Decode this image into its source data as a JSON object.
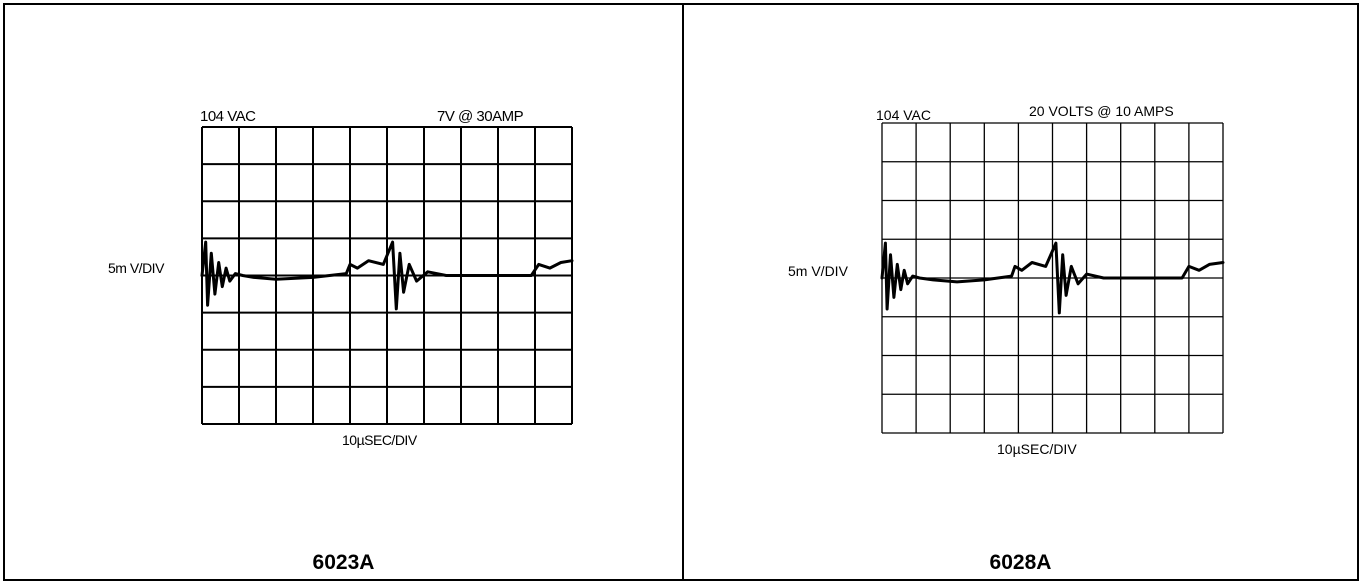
{
  "panels": [
    {
      "id": "left",
      "input_label": "104 VAC",
      "load_label": "7V @ 30AMP",
      "vertical_scale": "5m V/DIV",
      "horizontal_scale": "10µSEC/DIV",
      "model": "6023A"
    },
    {
      "id": "right",
      "input_label": "104 VAC",
      "load_label": "20 VOLTS @ 10 AMPS",
      "vertical_scale": "5m V/DIV",
      "horizontal_scale": "10µSEC/DIV",
      "model": "6028A"
    }
  ],
  "chart_data": [
    {
      "type": "line",
      "title": "",
      "input": "104 VAC",
      "load": "7V @ 30AMP",
      "ylabel": "5m V/DIV",
      "xlabel": "10µSEC/DIV",
      "grid": true,
      "divisions": {
        "x": 10,
        "y": 8
      },
      "xlim": [
        0,
        10
      ],
      "ylim": [
        -4,
        4
      ],
      "x": [
        0.0,
        0.1,
        0.15,
        0.25,
        0.35,
        0.45,
        0.55,
        0.65,
        0.75,
        0.9,
        1.1,
        1.4,
        2.0,
        3.0,
        3.9,
        4.0,
        4.2,
        4.5,
        4.9,
        5.15,
        5.25,
        5.35,
        5.45,
        5.6,
        5.8,
        6.1,
        6.6,
        7.5,
        8.5,
        8.9,
        9.1,
        9.4,
        9.7,
        10.0
      ],
      "y": [
        0.0,
        0.9,
        -0.8,
        0.6,
        -0.5,
        0.35,
        -0.3,
        0.2,
        -0.15,
        0.05,
        0.0,
        -0.05,
        -0.1,
        -0.05,
        0.05,
        0.3,
        0.2,
        0.4,
        0.3,
        0.9,
        -0.9,
        0.6,
        -0.45,
        0.3,
        -0.15,
        0.1,
        0.0,
        0.0,
        0.0,
        0.0,
        0.3,
        0.2,
        0.35,
        0.4
      ]
    },
    {
      "type": "line",
      "title": "",
      "input": "104 VAC",
      "load": "20 VOLTS @ 10 AMPS",
      "ylabel": "5m V/DIV",
      "xlabel": "10µSEC/DIV",
      "grid": true,
      "divisions": {
        "x": 10,
        "y": 8
      },
      "xlim": [
        0,
        10
      ],
      "ylim": [
        -4,
        4
      ],
      "x": [
        0.0,
        0.1,
        0.15,
        0.25,
        0.35,
        0.45,
        0.55,
        0.65,
        0.75,
        0.9,
        1.1,
        1.5,
        2.2,
        3.0,
        3.8,
        3.9,
        4.1,
        4.4,
        4.8,
        5.1,
        5.2,
        5.3,
        5.4,
        5.55,
        5.75,
        6.0,
        6.5,
        7.5,
        8.5,
        8.8,
        9.0,
        9.3,
        9.6,
        10.0
      ],
      "y": [
        0.0,
        0.9,
        -0.8,
        0.6,
        -0.5,
        0.35,
        -0.3,
        0.2,
        -0.15,
        0.05,
        0.0,
        -0.05,
        -0.1,
        -0.05,
        0.05,
        0.3,
        0.2,
        0.4,
        0.3,
        0.9,
        -0.9,
        0.6,
        -0.45,
        0.3,
        -0.15,
        0.1,
        0.0,
        0.0,
        0.0,
        0.0,
        0.3,
        0.2,
        0.35,
        0.4
      ]
    }
  ]
}
